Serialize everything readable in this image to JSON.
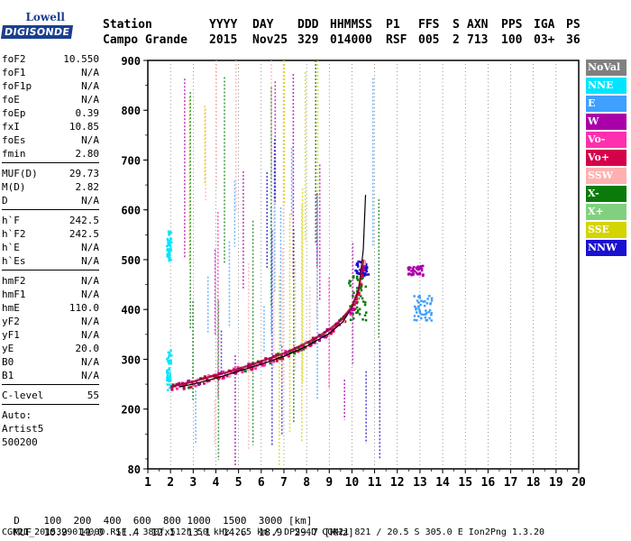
{
  "logo": {
    "line1": "Lowell",
    "line2": "DIGISONDE"
  },
  "header": {
    "labels": [
      "Station",
      "YYYY",
      "DAY",
      "DDD",
      "HHMMSS",
      "P1",
      "FFS",
      "S",
      "AXN",
      "PPS",
      "IGA",
      "PS"
    ],
    "values": [
      "Campo Grande",
      "2015",
      "Nov25",
      "329",
      "014000",
      "RSF",
      "005",
      "2",
      "713",
      "100",
      "03+",
      "36"
    ]
  },
  "params": {
    "group1": [
      {
        "name": "foF2",
        "value": "10.550"
      },
      {
        "name": "foF1",
        "value": "N/A"
      },
      {
        "name": "foF1p",
        "value": "N/A"
      },
      {
        "name": "foE",
        "value": "N/A"
      },
      {
        "name": "foEp",
        "value": "0.39"
      },
      {
        "name": "fxI",
        "value": "10.85"
      },
      {
        "name": "foEs",
        "value": "N/A"
      },
      {
        "name": "fmin",
        "value": "2.80"
      }
    ],
    "group2": [
      {
        "name": "MUF(D)",
        "value": "29.73"
      },
      {
        "name": "M(D)",
        "value": "2.82"
      },
      {
        "name": "D",
        "value": "N/A"
      }
    ],
    "group3": [
      {
        "name": "h`F",
        "value": "242.5"
      },
      {
        "name": "h`F2",
        "value": "242.5"
      },
      {
        "name": "h`E",
        "value": "N/A"
      },
      {
        "name": "h`Es",
        "value": "N/A"
      }
    ],
    "group4": [
      {
        "name": "hmF2",
        "value": "N/A"
      },
      {
        "name": "hmF1",
        "value": "N/A"
      },
      {
        "name": "hmE",
        "value": "110.0"
      },
      {
        "name": "yF2",
        "value": "N/A"
      },
      {
        "name": "yF1",
        "value": "N/A"
      },
      {
        "name": "yE",
        "value": "20.0"
      },
      {
        "name": "B0",
        "value": "N/A"
      },
      {
        "name": "B1",
        "value": "N/A"
      }
    ],
    "clevel": {
      "name": "C-level",
      "value": "55"
    },
    "auto": [
      "Auto:",
      "Artist5",
      "500200"
    ]
  },
  "legend": [
    {
      "label": "NoVal",
      "color": "#808080"
    },
    {
      "label": "NNE",
      "color": "#00e5ff"
    },
    {
      "label": "E",
      "color": "#3fa0ff"
    },
    {
      "label": "W",
      "color": "#aa00aa"
    },
    {
      "label": "Vo-",
      "color": "#ff2fb0"
    },
    {
      "label": "Vo+",
      "color": "#d4004a"
    },
    {
      "label": "SSW",
      "color": "#ffb0b0"
    },
    {
      "label": "X-",
      "color": "#0a7a0a"
    },
    {
      "label": "X+",
      "color": "#80d080"
    },
    {
      "label": "SSE",
      "color": "#d4d400"
    },
    {
      "label": "NNW",
      "color": "#1a10d0"
    }
  ],
  "chart_data": {
    "type": "scatter",
    "xlabel": "",
    "ylabel": "",
    "xlim": [
      1,
      20
    ],
    "ylim": [
      80,
      900
    ],
    "xticks": [
      1,
      2,
      3,
      4,
      5,
      6,
      7,
      8,
      9,
      10,
      11,
      12,
      13,
      14,
      15,
      16,
      17,
      18,
      19,
      20
    ],
    "yticks": [
      80,
      200,
      300,
      400,
      500,
      600,
      700,
      800,
      900
    ],
    "grid": "vertical-dotted",
    "trace_x": [
      2.0,
      2.5,
      3.0,
      3.5,
      4.0,
      4.5,
      5.0,
      5.5,
      6.0,
      6.5,
      7.0,
      7.5,
      8.0,
      8.5,
      9.0,
      9.5,
      10.0,
      10.3,
      10.5
    ],
    "trace_y": [
      245,
      250,
      255,
      262,
      268,
      274,
      281,
      288,
      296,
      304,
      312,
      322,
      333,
      345,
      360,
      378,
      405,
      440,
      500
    ],
    "profile_x": [
      2.4,
      3.0,
      4.0,
      5.0,
      6.0,
      7.0,
      8.0,
      9.0,
      9.6,
      10.0,
      10.3,
      10.5,
      10.6
    ],
    "profile_y": [
      245,
      250,
      262,
      276,
      290,
      306,
      326,
      352,
      375,
      405,
      440,
      520,
      630
    ],
    "clusters": [
      {
        "dir": "NNE",
        "x": [
          1.8,
          2.0
        ],
        "y": [
          500,
          560
        ]
      },
      {
        "dir": "NNE",
        "x": [
          1.8,
          2.0
        ],
        "y": [
          240,
          320
        ]
      },
      {
        "dir": "E",
        "x": [
          12.7,
          13.5
        ],
        "y": [
          380,
          430
        ]
      },
      {
        "dir": "W",
        "x": [
          12.4,
          13.1
        ],
        "y": [
          470,
          490
        ]
      },
      {
        "dir": "NNW",
        "x": [
          10.1,
          10.7
        ],
        "y": [
          470,
          500
        ]
      },
      {
        "dir": "X-",
        "x": [
          9.8,
          10.6
        ],
        "y": [
          380,
          470
        ]
      }
    ]
  },
  "footer": {
    "line1_label": "D",
    "line1_values": "100  200  400  600  800 1000  1500  3000 [km]",
    "line2_label": "MUF",
    "line2_values": "10.9  11.0  11.4  12.1  13.1  14.6  18.9  29.7 [MHz]",
    "line3": "CGK21_2015329014000.RSF / 380fx512h 50 kHz 2.5 km / DPS-4D CGK21 821 / 20.5 S 305.0 E Ion2Png 1.3.20"
  }
}
